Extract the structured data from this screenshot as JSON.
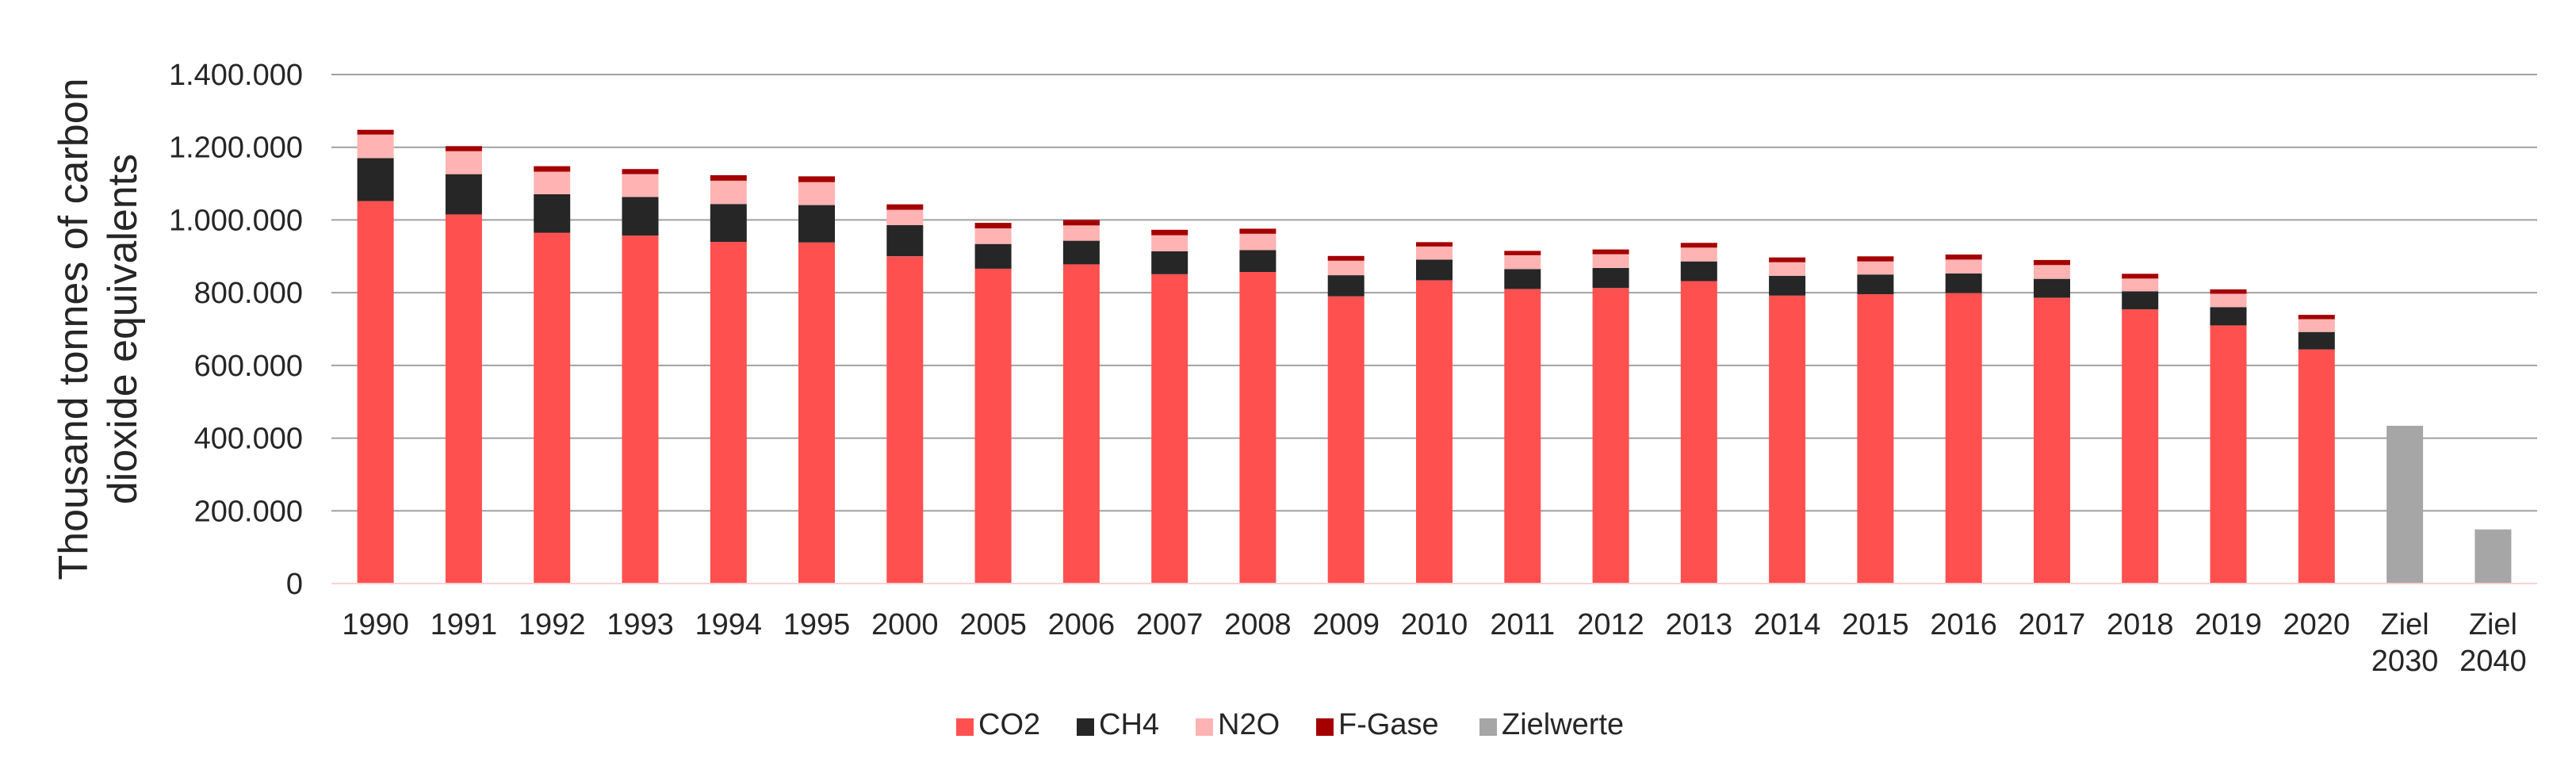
{
  "chart_data": {
    "type": "bar",
    "stacked": true,
    "title": "",
    "xlabel": "",
    "ylabel_lines": [
      "Thousand tonnes of carbon",
      "dioxide equivalents"
    ],
    "ylim": [
      0,
      1400000
    ],
    "yticks": [
      0,
      200000,
      400000,
      600000,
      800000,
      1000000,
      1200000,
      1400000
    ],
    "ytick_labels": [
      "0",
      "200.000",
      "400.000",
      "600.000",
      "800.000",
      "1.000.000",
      "1.200.000",
      "1.400.000"
    ],
    "grid": true,
    "legend_position": "bottom-center",
    "categories": [
      [
        "1990"
      ],
      [
        "1991"
      ],
      [
        "1992"
      ],
      [
        "1993"
      ],
      [
        "1994"
      ],
      [
        "1995"
      ],
      [
        "2000"
      ],
      [
        "2005"
      ],
      [
        "2006"
      ],
      [
        "2007"
      ],
      [
        "2008"
      ],
      [
        "2009"
      ],
      [
        "2010"
      ],
      [
        "2011"
      ],
      [
        "2012"
      ],
      [
        "2013"
      ],
      [
        "2014"
      ],
      [
        "2015"
      ],
      [
        "2016"
      ],
      [
        "2017"
      ],
      [
        "2018"
      ],
      [
        "2019"
      ],
      [
        "2020"
      ],
      [
        "Ziel",
        "2030"
      ],
      [
        "Ziel",
        "2040"
      ]
    ],
    "series": [
      {
        "name": "CO2",
        "color": "#ff5050",
        "values": [
          1052000,
          1015000,
          965000,
          957000,
          940000,
          938000,
          900000,
          866000,
          878000,
          851000,
          857000,
          790000,
          834000,
          810000,
          813000,
          832000,
          792000,
          796000,
          799000,
          786000,
          754000,
          710000,
          644000,
          null,
          null
        ]
      },
      {
        "name": "CH4",
        "color": "#262626",
        "values": [
          118000,
          111000,
          106000,
          106000,
          104000,
          103000,
          86000,
          68000,
          65000,
          63000,
          60000,
          58000,
          57000,
          55000,
          55000,
          54000,
          54000,
          54000,
          54000,
          52000,
          50000,
          50000,
          48000,
          null,
          null
        ]
      },
      {
        "name": "N2O",
        "color": "#ffb3b3",
        "values": [
          65000,
          63000,
          62000,
          63000,
          64000,
          63000,
          42000,
          43000,
          42000,
          44000,
          45000,
          40000,
          36000,
          38000,
          38000,
          38000,
          38000,
          36000,
          38000,
          38000,
          35000,
          37000,
          35000,
          null,
          null
        ]
      },
      {
        "name": "F-Gase",
        "color": "#a50000",
        "values": [
          13000,
          14000,
          15000,
          14000,
          15000,
          16000,
          15000,
          15000,
          15000,
          15000,
          14000,
          13000,
          12000,
          12000,
          13000,
          13000,
          13000,
          14000,
          14000,
          14000,
          13000,
          12000,
          12000,
          null,
          null
        ]
      },
      {
        "name": "Zielwerte",
        "color": "#a6a6a6",
        "values": [
          null,
          null,
          null,
          null,
          null,
          null,
          null,
          null,
          null,
          null,
          null,
          null,
          null,
          null,
          null,
          null,
          null,
          null,
          null,
          null,
          null,
          null,
          null,
          434000,
          149000
        ]
      }
    ]
  }
}
